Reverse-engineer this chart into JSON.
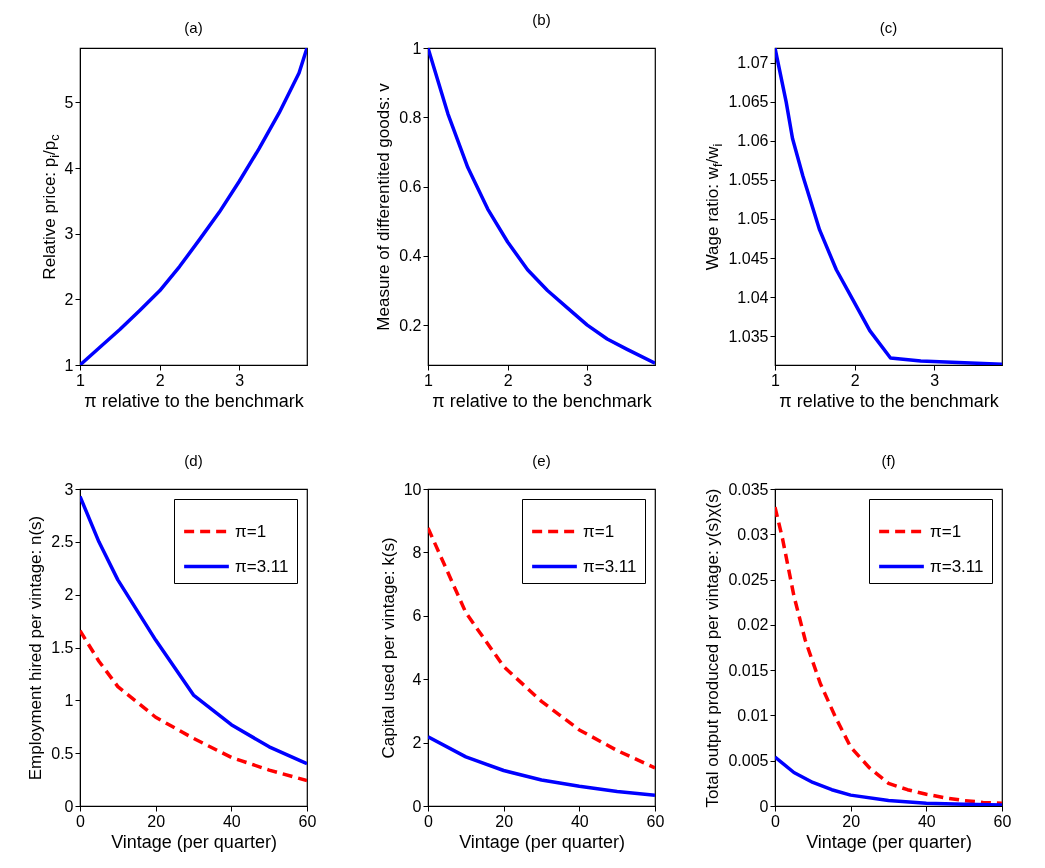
{
  "chart_data": [
    {
      "type": "line",
      "title": "(a)",
      "xlabel": "π relative to the benchmark",
      "ylabel": "Relative price: p$_{i}$/p$_{c}$",
      "x": [
        1,
        1.25,
        1.5,
        1.75,
        2,
        2.25,
        2.5,
        2.75,
        3,
        3.25,
        3.5,
        3.75,
        3.85
      ],
      "series": [
        {
          "color": "#0000ff",
          "values": [
            1,
            1.27,
            1.54,
            1.83,
            2.13,
            2.5,
            2.91,
            3.33,
            3.8,
            4.3,
            4.84,
            5.45,
            5.83
          ]
        }
      ],
      "xlim": [
        1,
        3.85
      ],
      "ylim": [
        1,
        5.83
      ],
      "xticks": [
        1,
        2,
        3
      ],
      "yticks": [
        1,
        2,
        3,
        4,
        5
      ],
      "line_style": "solid"
    },
    {
      "type": "line",
      "title": "(b)",
      "xlabel": "π relative to the benchmark",
      "ylabel": "Measure of differentited goods: v",
      "x": [
        1,
        1.25,
        1.5,
        1.75,
        2,
        2.25,
        2.5,
        2.75,
        3,
        3.25,
        3.5,
        3.85
      ],
      "series": [
        {
          "color": "#0000ff",
          "values": [
            1,
            0.81,
            0.655,
            0.535,
            0.44,
            0.36,
            0.3,
            0.25,
            0.2,
            0.16,
            0.13,
            0.09
          ]
        }
      ],
      "xlim": [
        1,
        3.85
      ],
      "ylim": [
        0.085,
        1
      ],
      "xticks": [
        1,
        2,
        3
      ],
      "yticks": [
        0.2,
        0.4,
        0.6,
        0.8,
        1
      ],
      "line_style": "solid"
    },
    {
      "type": "line",
      "title": "(c)",
      "xlabel": "π relative to the benchmark",
      "ylabel": "Wage ratio: w$_{f}$/w$_{i}$",
      "x": [
        1,
        1.14,
        1.22,
        1.35,
        1.56,
        1.77,
        1.98,
        2.19,
        2.45,
        2.83,
        3.85
      ],
      "series": [
        {
          "color": "#0000ff",
          "values": [
            1.0719,
            1.065,
            1.0603,
            1.0555,
            1.0486,
            1.0435,
            1.0396,
            1.0357,
            1.0322,
            1.0318,
            1.0314
          ]
        }
      ],
      "xlim": [
        1,
        3.85
      ],
      "ylim": [
        1.0313,
        1.0719
      ],
      "xticks": [
        1,
        2,
        3
      ],
      "yticks": [
        1.035,
        1.04,
        1.045,
        1.05,
        1.055,
        1.06,
        1.065,
        1.07
      ],
      "line_style": "solid"
    },
    {
      "type": "line",
      "title": "(d)",
      "xlabel": "Vintage (per quarter)",
      "ylabel": "Employment hired per vintage: n(s)",
      "x": [
        0,
        5,
        10,
        20,
        30,
        40,
        50,
        60
      ],
      "series": [
        {
          "name": "π=1",
          "color": "#ff0000",
          "line_style": "dashed",
          "values": [
            1.66,
            1.37,
            1.13,
            0.84,
            0.64,
            0.46,
            0.34,
            0.24
          ]
        },
        {
          "name": "π=3.11",
          "color": "#0000ff",
          "line_style": "solid",
          "values": [
            2.93,
            2.5,
            2.14,
            1.57,
            1.05,
            0.77,
            0.56,
            0.4
          ]
        }
      ],
      "xlim": [
        0,
        60
      ],
      "ylim": [
        0,
        3
      ],
      "xticks": [
        0,
        20,
        40,
        60
      ],
      "yticks": [
        0,
        0.5,
        1,
        1.5,
        2,
        2.5,
        3
      ],
      "legend": "top right"
    },
    {
      "type": "line",
      "title": "(e)",
      "xlabel": "Vintage (per quarter)",
      "ylabel": "Capital used per vintage: k(s)",
      "x": [
        0,
        10,
        20,
        30,
        40,
        50,
        60
      ],
      "series": [
        {
          "name": "π=1",
          "color": "#ff0000",
          "line_style": "dashed",
          "values": [
            8.77,
            6.1,
            4.4,
            3.3,
            2.4,
            1.75,
            1.2
          ]
        },
        {
          "name": "π=3.11",
          "color": "#0000ff",
          "line_style": "solid",
          "values": [
            2.18,
            1.55,
            1.12,
            0.82,
            0.62,
            0.46,
            0.34
          ]
        }
      ],
      "xlim": [
        0,
        60
      ],
      "ylim": [
        0,
        10
      ],
      "xticks": [
        0,
        20,
        40,
        60
      ],
      "yticks": [
        0,
        2,
        4,
        6,
        8,
        10
      ],
      "legend": "top right"
    },
    {
      "type": "line",
      "title": "(f)",
      "xlabel": "Vintage (per quarter)",
      "ylabel": "Total output produced per vintage: y(s)χ(s)",
      "series": [
        {
          "name": "π=1",
          "color": "#ff0000",
          "line_style": "dashed",
          "x": [
            0,
            2,
            5,
            8,
            12,
            16,
            20,
            25,
            30,
            35,
            40,
            45,
            50,
            55,
            60
          ],
          "values": [
            0.033,
            0.0295,
            0.0232,
            0.0183,
            0.0135,
            0.0098,
            0.0065,
            0.0042,
            0.0025,
            0.0018,
            0.0013,
            0.0009,
            0.0006,
            0.0004,
            0.0003
          ]
        },
        {
          "name": "π=3.11",
          "color": "#0000ff",
          "line_style": "solid",
          "x": [
            0,
            5,
            10,
            15,
            20,
            30,
            40,
            50,
            60
          ],
          "values": [
            0.0054,
            0.0037,
            0.0026,
            0.0018,
            0.0012,
            0.0006,
            0.0003,
            0.0002,
            0.0001
          ]
        }
      ],
      "xlim": [
        0,
        60
      ],
      "ylim": [
        0,
        0.035
      ],
      "xticks": [
        0,
        20,
        40,
        60
      ],
      "yticks": [
        0,
        0.005,
        0.01,
        0.015,
        0.02,
        0.025,
        0.03,
        0.035
      ],
      "legend": "top right"
    }
  ]
}
